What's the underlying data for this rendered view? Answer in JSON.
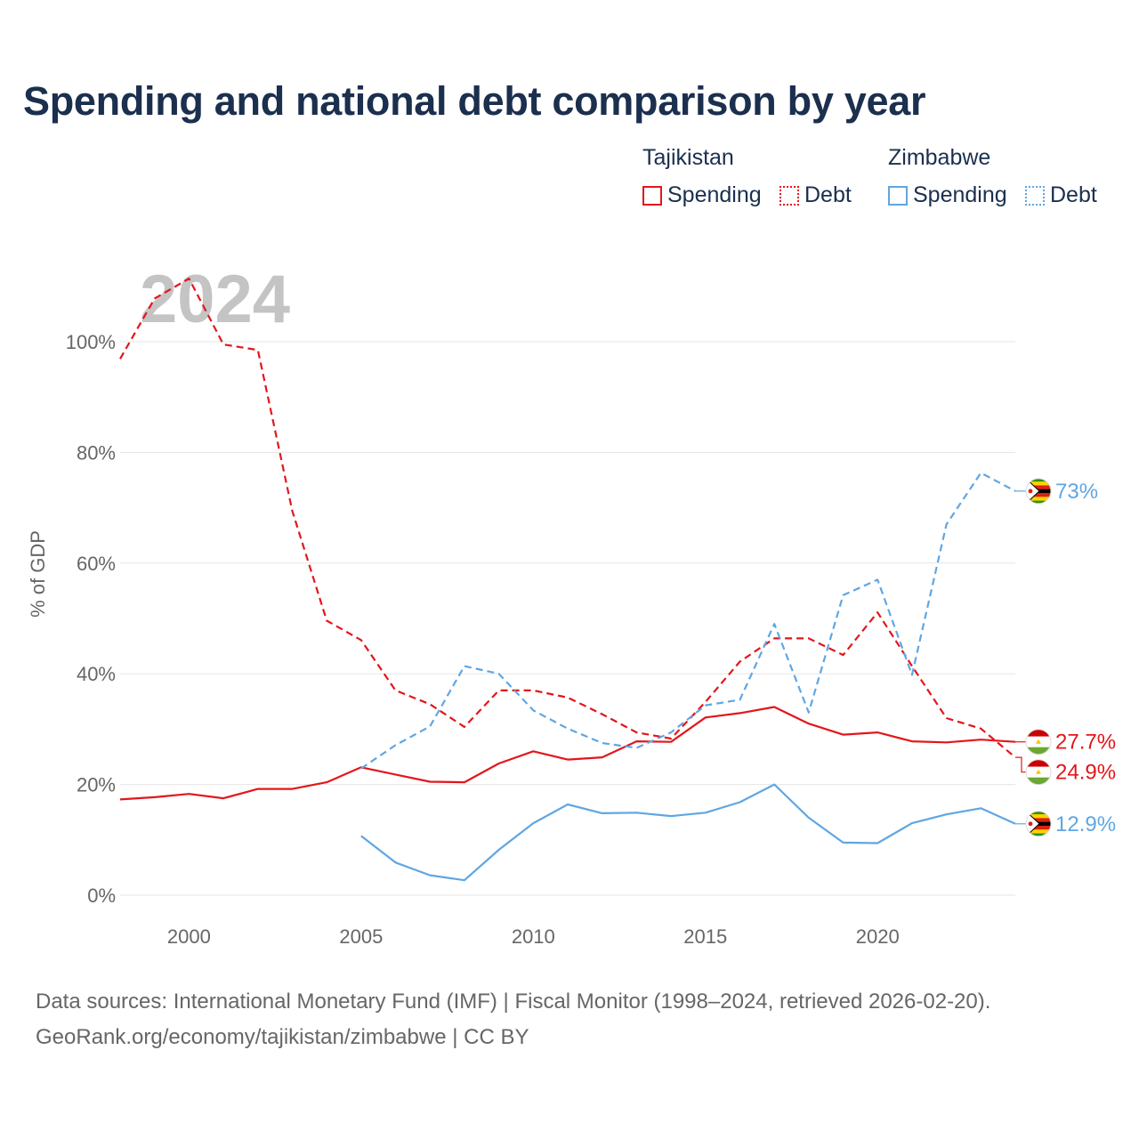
{
  "title": "Spending and national debt comparison by year",
  "legend": {
    "groups": [
      {
        "name": "Tajikistan",
        "color": "#e3161b",
        "items": [
          {
            "label": "Spending",
            "style": "solid"
          },
          {
            "label": "Debt",
            "style": "dotted"
          }
        ]
      },
      {
        "name": "Zimbabwe",
        "color": "#5fa6e2",
        "items": [
          {
            "label": "Spending",
            "style": "solid"
          },
          {
            "label": "Debt",
            "style": "dotted"
          }
        ]
      }
    ]
  },
  "sources": {
    "line1": "Data sources: International Monetary Fund (IMF) | Fiscal Monitor (1998–2024, retrieved 2026-02-20).",
    "line2": "GeoRank.org/economy/tajikistan/zimbabwe | CC BY"
  },
  "chart_data": {
    "type": "line",
    "title": "Spending and national debt comparison by year",
    "year_label": "2024",
    "ylabel": "% of GDP",
    "xlabel": "",
    "xlim": [
      1998,
      2024
    ],
    "ylim": [
      0,
      115
    ],
    "y_ticks": [
      0,
      20,
      40,
      60,
      80,
      100
    ],
    "y_tick_labels": [
      "0%",
      "20%",
      "40%",
      "60%",
      "80%",
      "100%"
    ],
    "x_ticks": [
      2000,
      2005,
      2010,
      2015,
      2020
    ],
    "x_tick_labels": [
      "2000",
      "2005",
      "2010",
      "2015",
      "2020"
    ],
    "grid": true,
    "x": [
      1998,
      1999,
      2000,
      2001,
      2002,
      2003,
      2004,
      2005,
      2006,
      2007,
      2008,
      2009,
      2010,
      2011,
      2012,
      2013,
      2014,
      2015,
      2016,
      2017,
      2018,
      2019,
      2020,
      2021,
      2022,
      2023,
      2024
    ],
    "series": [
      {
        "name": "Tajikistan Spending",
        "color": "#e3161b",
        "dash": "solid",
        "flag": "tajikistan",
        "end_label": "27.7%",
        "values": [
          17.3,
          17.7,
          18.3,
          17.5,
          19.2,
          19.2,
          20.4,
          23.1,
          21.8,
          20.5,
          20.4,
          23.8,
          26.0,
          24.5,
          24.9,
          27.8,
          27.7,
          32.1,
          32.9,
          34.0,
          31.0,
          29.0,
          29.4,
          27.8,
          27.6,
          28.1,
          27.7
        ]
      },
      {
        "name": "Tajikistan Debt",
        "color": "#e3161b",
        "dash": "dashed",
        "flag": "tajikistan",
        "end_label": "24.9%",
        "values": [
          96.9,
          107.8,
          111.4,
          99.5,
          98.5,
          69.4,
          49.6,
          46.1,
          37.0,
          34.5,
          30.4,
          37.0,
          37.0,
          35.7,
          32.7,
          29.4,
          28.3,
          34.9,
          42.2,
          46.4,
          46.4,
          43.4,
          51.1,
          41.4,
          32.0,
          30.1,
          24.9
        ]
      },
      {
        "name": "Zimbabwe Spending",
        "color": "#5fa6e2",
        "dash": "solid",
        "flag": "zimbabwe",
        "end_label": "12.9%",
        "values": [
          null,
          null,
          null,
          null,
          null,
          null,
          null,
          10.7,
          5.9,
          3.6,
          2.7,
          8.2,
          13.0,
          16.4,
          14.8,
          14.9,
          14.3,
          14.9,
          16.8,
          20.0,
          14.0,
          9.5,
          9.4,
          13.0,
          14.6,
          15.7,
          12.9
        ]
      },
      {
        "name": "Zimbabwe Debt",
        "color": "#5fa6e2",
        "dash": "dashed",
        "flag": "zimbabwe",
        "end_label": "73%",
        "values": [
          null,
          null,
          null,
          null,
          null,
          null,
          null,
          22.9,
          27.1,
          30.5,
          41.4,
          40.0,
          33.4,
          30.1,
          27.5,
          26.6,
          29.4,
          34.3,
          35.3,
          49.0,
          33.0,
          54.2,
          57.0,
          39.8,
          67.0,
          76.3,
          73.0
        ]
      }
    ]
  }
}
